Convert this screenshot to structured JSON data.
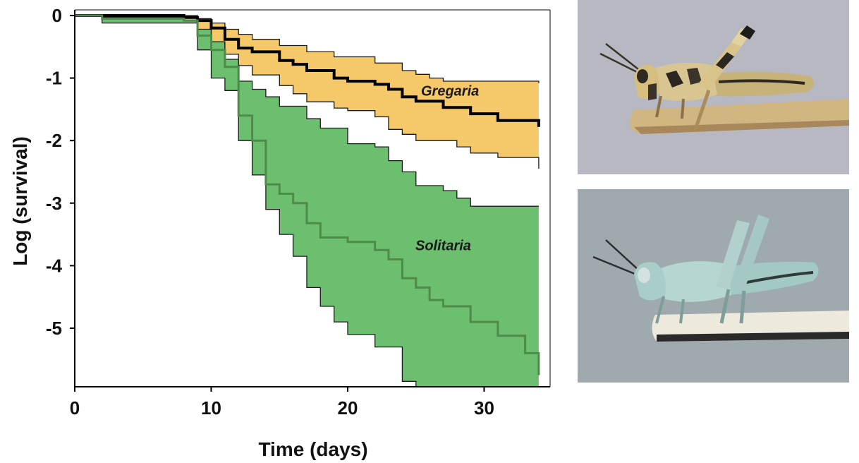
{
  "chart_data": {
    "type": "line",
    "title": "",
    "xlabel": "Time (days)",
    "ylabel": "Log (survival)",
    "xlim": [
      0,
      35
    ],
    "ylim": [
      -6,
      0.15
    ],
    "xticks": [
      0,
      10,
      20,
      30
    ],
    "yticks": [
      0,
      -1,
      -2,
      -3,
      -4,
      -5
    ],
    "grid": false,
    "series": [
      {
        "name": "Gregaria",
        "color": "#000000",
        "band_color": "#f5c86a",
        "line": [
          [
            0,
            0
          ],
          [
            2,
            0
          ],
          [
            8,
            -0.03
          ],
          [
            9,
            -0.08
          ],
          [
            10,
            -0.2
          ],
          [
            11,
            -0.38
          ],
          [
            12,
            -0.52
          ],
          [
            13,
            -0.58
          ],
          [
            15,
            -0.72
          ],
          [
            16,
            -0.78
          ],
          [
            17,
            -0.88
          ],
          [
            19,
            -1.0
          ],
          [
            20,
            -1.05
          ],
          [
            22,
            -1.1
          ],
          [
            23,
            -1.18
          ],
          [
            24,
            -1.3
          ],
          [
            25,
            -1.37
          ],
          [
            27,
            -1.47
          ],
          [
            29,
            -1.57
          ],
          [
            31,
            -1.68
          ],
          [
            34,
            -1.78
          ]
        ],
        "upper": [
          [
            0,
            0
          ],
          [
            8,
            0
          ],
          [
            9,
            -0.05
          ],
          [
            10,
            -0.12
          ],
          [
            11,
            -0.22
          ],
          [
            12,
            -0.3
          ],
          [
            13,
            -0.38
          ],
          [
            15,
            -0.48
          ],
          [
            17,
            -0.58
          ],
          [
            19,
            -0.66
          ],
          [
            22,
            -0.76
          ],
          [
            24,
            -0.88
          ],
          [
            25,
            -0.94
          ],
          [
            26,
            -1.0
          ],
          [
            27,
            -1.05
          ],
          [
            34,
            -1.08
          ]
        ],
        "lower": [
          [
            0,
            0
          ],
          [
            2,
            0
          ],
          [
            8,
            -0.08
          ],
          [
            9,
            -0.22
          ],
          [
            10,
            -0.42
          ],
          [
            11,
            -0.62
          ],
          [
            12,
            -0.8
          ],
          [
            13,
            -0.95
          ],
          [
            15,
            -1.12
          ],
          [
            16,
            -1.25
          ],
          [
            17,
            -1.38
          ],
          [
            19,
            -1.48
          ],
          [
            20,
            -1.52
          ],
          [
            22,
            -1.62
          ],
          [
            23,
            -1.82
          ],
          [
            24,
            -1.9
          ],
          [
            25,
            -2.0
          ],
          [
            28,
            -2.1
          ],
          [
            29,
            -2.2
          ],
          [
            31,
            -2.27
          ],
          [
            34,
            -2.45
          ]
        ]
      },
      {
        "name": "Solitaria",
        "color": "#4e8a4a",
        "band_color": "#6bbf6f",
        "line": [
          [
            0,
            0
          ],
          [
            2,
            -0.05
          ],
          [
            8,
            -0.08
          ],
          [
            9,
            -0.32
          ],
          [
            10,
            -0.55
          ],
          [
            11,
            -0.82
          ],
          [
            12,
            -1.6
          ],
          [
            13,
            -2.0
          ],
          [
            14,
            -2.7
          ],
          [
            15,
            -2.85
          ],
          [
            16,
            -3.0
          ],
          [
            17,
            -3.32
          ],
          [
            18,
            -3.55
          ],
          [
            20,
            -3.62
          ],
          [
            22,
            -3.75
          ],
          [
            23,
            -3.9
          ],
          [
            24,
            -4.2
          ],
          [
            25,
            -4.35
          ],
          [
            26,
            -4.55
          ],
          [
            27,
            -4.65
          ],
          [
            29,
            -4.9
          ],
          [
            31,
            -5.12
          ],
          [
            33,
            -5.4
          ],
          [
            34,
            -5.75
          ]
        ],
        "upper": [
          [
            0,
            0
          ],
          [
            2,
            -0.03
          ],
          [
            8,
            -0.06
          ],
          [
            9,
            -0.18
          ],
          [
            10,
            -0.4
          ],
          [
            11,
            -0.7
          ],
          [
            12,
            -1.05
          ],
          [
            13,
            -1.18
          ],
          [
            14,
            -1.3
          ],
          [
            15,
            -1.45
          ],
          [
            17,
            -1.65
          ],
          [
            18,
            -1.8
          ],
          [
            20,
            -2.05
          ],
          [
            22,
            -2.1
          ],
          [
            23,
            -2.32
          ],
          [
            24,
            -2.5
          ],
          [
            25,
            -2.72
          ],
          [
            27,
            -2.8
          ],
          [
            28,
            -2.92
          ],
          [
            29,
            -3.05
          ],
          [
            34,
            -3.05
          ]
        ],
        "lower": [
          [
            0,
            0
          ],
          [
            2,
            -0.12
          ],
          [
            8,
            -0.12
          ],
          [
            9,
            -0.55
          ],
          [
            10,
            -1.0
          ],
          [
            11,
            -1.2
          ],
          [
            12,
            -2.0
          ],
          [
            13,
            -2.55
          ],
          [
            14,
            -3.1
          ],
          [
            15,
            -3.5
          ],
          [
            16,
            -3.85
          ],
          [
            17,
            -4.35
          ],
          [
            18,
            -4.65
          ],
          [
            19,
            -4.9
          ],
          [
            20,
            -5.1
          ],
          [
            22,
            -5.3
          ],
          [
            24,
            -5.85
          ],
          [
            25,
            -6.0
          ],
          [
            34,
            -6.0
          ]
        ]
      }
    ],
    "annotations": [
      {
        "text": "Gregaria",
        "x": 27.5,
        "y": -1.28
      },
      {
        "text": "Solitaria",
        "x": 27.0,
        "y": -3.75
      }
    ]
  },
  "photos": [
    {
      "name": "gregarious locust",
      "background": "#b9b9c3"
    },
    {
      "name": "solitary locust",
      "background": "#9da9ad"
    }
  ]
}
